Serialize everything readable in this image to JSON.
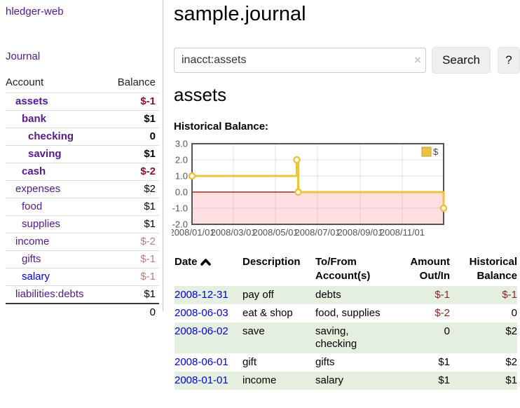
{
  "theme": {
    "purple": "#551a8b",
    "blue": "#0000dd",
    "neg_strong": "#871722",
    "neg_weak": "#bd7e7e",
    "neg_table": "#8b2626",
    "stripe": "#e4efe0",
    "chart_line": "#edc240",
    "chart_border": "#545454",
    "zero_line": "#8b0000",
    "grid": "#e0e0e0",
    "below_fill": "rgba(255,110,110,0.22)",
    "tick_text": "#545454"
  },
  "sidebar": {
    "brand": "hledger-web",
    "nav_journal": "Journal",
    "col_account": "Account",
    "col_balance": "Balance",
    "accounts": [
      {
        "name": "assets",
        "depth": 1,
        "bold": true,
        "balance": "$-1",
        "neg": true,
        "unvisited": false
      },
      {
        "name": "bank",
        "depth": 2,
        "bold": true,
        "balance": "$1",
        "neg": false,
        "unvisited": false
      },
      {
        "name": "checking",
        "depth": 3,
        "bold": true,
        "balance": "0",
        "neg": false,
        "unvisited": false
      },
      {
        "name": "saving",
        "depth": 3,
        "bold": true,
        "balance": "$1",
        "neg": false,
        "unvisited": false
      },
      {
        "name": "cash",
        "depth": 2,
        "bold": true,
        "balance": "$-2",
        "neg": true,
        "unvisited": false
      },
      {
        "name": "expenses",
        "depth": 1,
        "bold": false,
        "balance": "$2",
        "neg": false,
        "unvisited": false
      },
      {
        "name": "food",
        "depth": 2,
        "bold": false,
        "balance": "$1",
        "neg": false,
        "unvisited": false
      },
      {
        "name": "supplies",
        "depth": 2,
        "bold": false,
        "balance": "$1",
        "neg": false,
        "unvisited": false
      },
      {
        "name": "income",
        "depth": 1,
        "bold": false,
        "balance": "$-2",
        "neg": true,
        "unvisited": false
      },
      {
        "name": "gifts",
        "depth": 2,
        "bold": false,
        "balance": "$-1",
        "neg": true,
        "unvisited": false
      },
      {
        "name": "salary",
        "depth": 2,
        "bold": false,
        "balance": "$-1",
        "neg": true,
        "unvisited": true
      },
      {
        "name": "liabilities:debts",
        "depth": 1,
        "bold": false,
        "balance": "$1",
        "neg": false,
        "unvisited": false
      }
    ],
    "total": "0"
  },
  "header": {
    "title": "sample.journal"
  },
  "search": {
    "value": "inacct:assets",
    "clear_icon": "×",
    "button_label": "Search",
    "help_label": "?"
  },
  "account_page": {
    "heading": "assets",
    "chart_title": "Historical Balance:"
  },
  "chart_data": {
    "type": "line",
    "step": true,
    "title": "Historical Balance:",
    "legend": [
      {
        "label": "$"
      }
    ],
    "legend_position": "top-right",
    "grid": true,
    "x_start": "2008-01-01",
    "x_end": "2008-12-31",
    "ylim": [
      -2,
      3
    ],
    "y_ticks": [
      3.0,
      2.0,
      1.0,
      0.0,
      -1.0,
      -2.0
    ],
    "x_ticks": [
      {
        "date": "2008-01-01",
        "label": "2008/01/01"
      },
      {
        "date": "2008-03-01",
        "label": "2008/03/01"
      },
      {
        "date": "2008-05-01",
        "label": "2008/05/01"
      },
      {
        "date": "2008-07-01",
        "label": "2008/07/01"
      },
      {
        "date": "2008-09-01",
        "label": "2008/09/01"
      },
      {
        "date": "2008-11-01",
        "label": "2008/11/01"
      }
    ],
    "series": [
      {
        "name": "$",
        "points": [
          {
            "date": "2008-01-01",
            "value": 1
          },
          {
            "date": "2008-06-01",
            "value": 2
          },
          {
            "date": "2008-06-03",
            "value": 0
          },
          {
            "date": "2008-12-31",
            "value": -1
          }
        ]
      }
    ],
    "below_zero_shaded": true
  },
  "register": {
    "headers": {
      "date": "Date",
      "description": "Description",
      "accounts": "To/From Account(s)",
      "amount": "Amount Out/In",
      "balance": "Historical Balance"
    },
    "rows": [
      {
        "date": "2008-12-31",
        "description": "pay off",
        "accounts": "debts",
        "amount": "$-1",
        "amount_neg": true,
        "balance": "$-1",
        "balance_neg": true,
        "stripe": true
      },
      {
        "date": "2008-06-03",
        "description": "eat & shop",
        "accounts": "food, supplies",
        "amount": "$-2",
        "amount_neg": true,
        "balance": "0",
        "balance_neg": false,
        "stripe": false
      },
      {
        "date": "2008-06-02",
        "description": "save",
        "accounts": "saving, checking",
        "amount": "0",
        "amount_neg": false,
        "balance": "$2",
        "balance_neg": false,
        "stripe": true
      },
      {
        "date": "2008-06-01",
        "description": "gift",
        "accounts": "gifts",
        "amount": "$1",
        "amount_neg": false,
        "balance": "$2",
        "balance_neg": false,
        "stripe": false
      },
      {
        "date": "2008-01-01",
        "description": "income",
        "accounts": "salary",
        "amount": "$1",
        "amount_neg": false,
        "balance": "$1",
        "balance_neg": false,
        "stripe": true
      }
    ]
  }
}
